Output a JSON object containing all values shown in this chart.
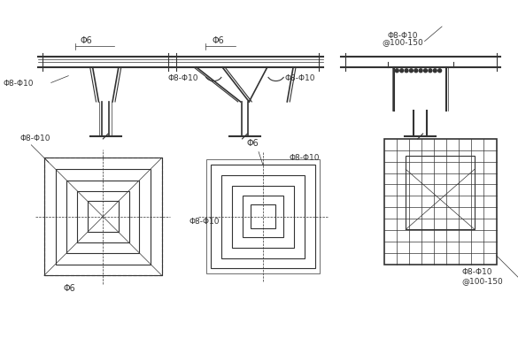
{
  "bg_color": "#f0f0f0",
  "line_color": "#333333",
  "title": "",
  "labels": {
    "phi6_1": "Φ6",
    "phi6_2": "Φ6",
    "phi6_3": "Φ6",
    "phi6_4": "Φ6",
    "phi8_10_1": "Φ8-Φ10",
    "phi8_10_2": "Φ8-Φ10",
    "phi8_10_3": "Φ8-Φ10",
    "phi8_10_4": "Φ8-Φ10",
    "phi8_10_5": "Φ8-Φ10",
    "phi8_10_6": "Φ8-Φ10",
    "spacing1": "@100-150",
    "spacing2": "@100-150"
  }
}
